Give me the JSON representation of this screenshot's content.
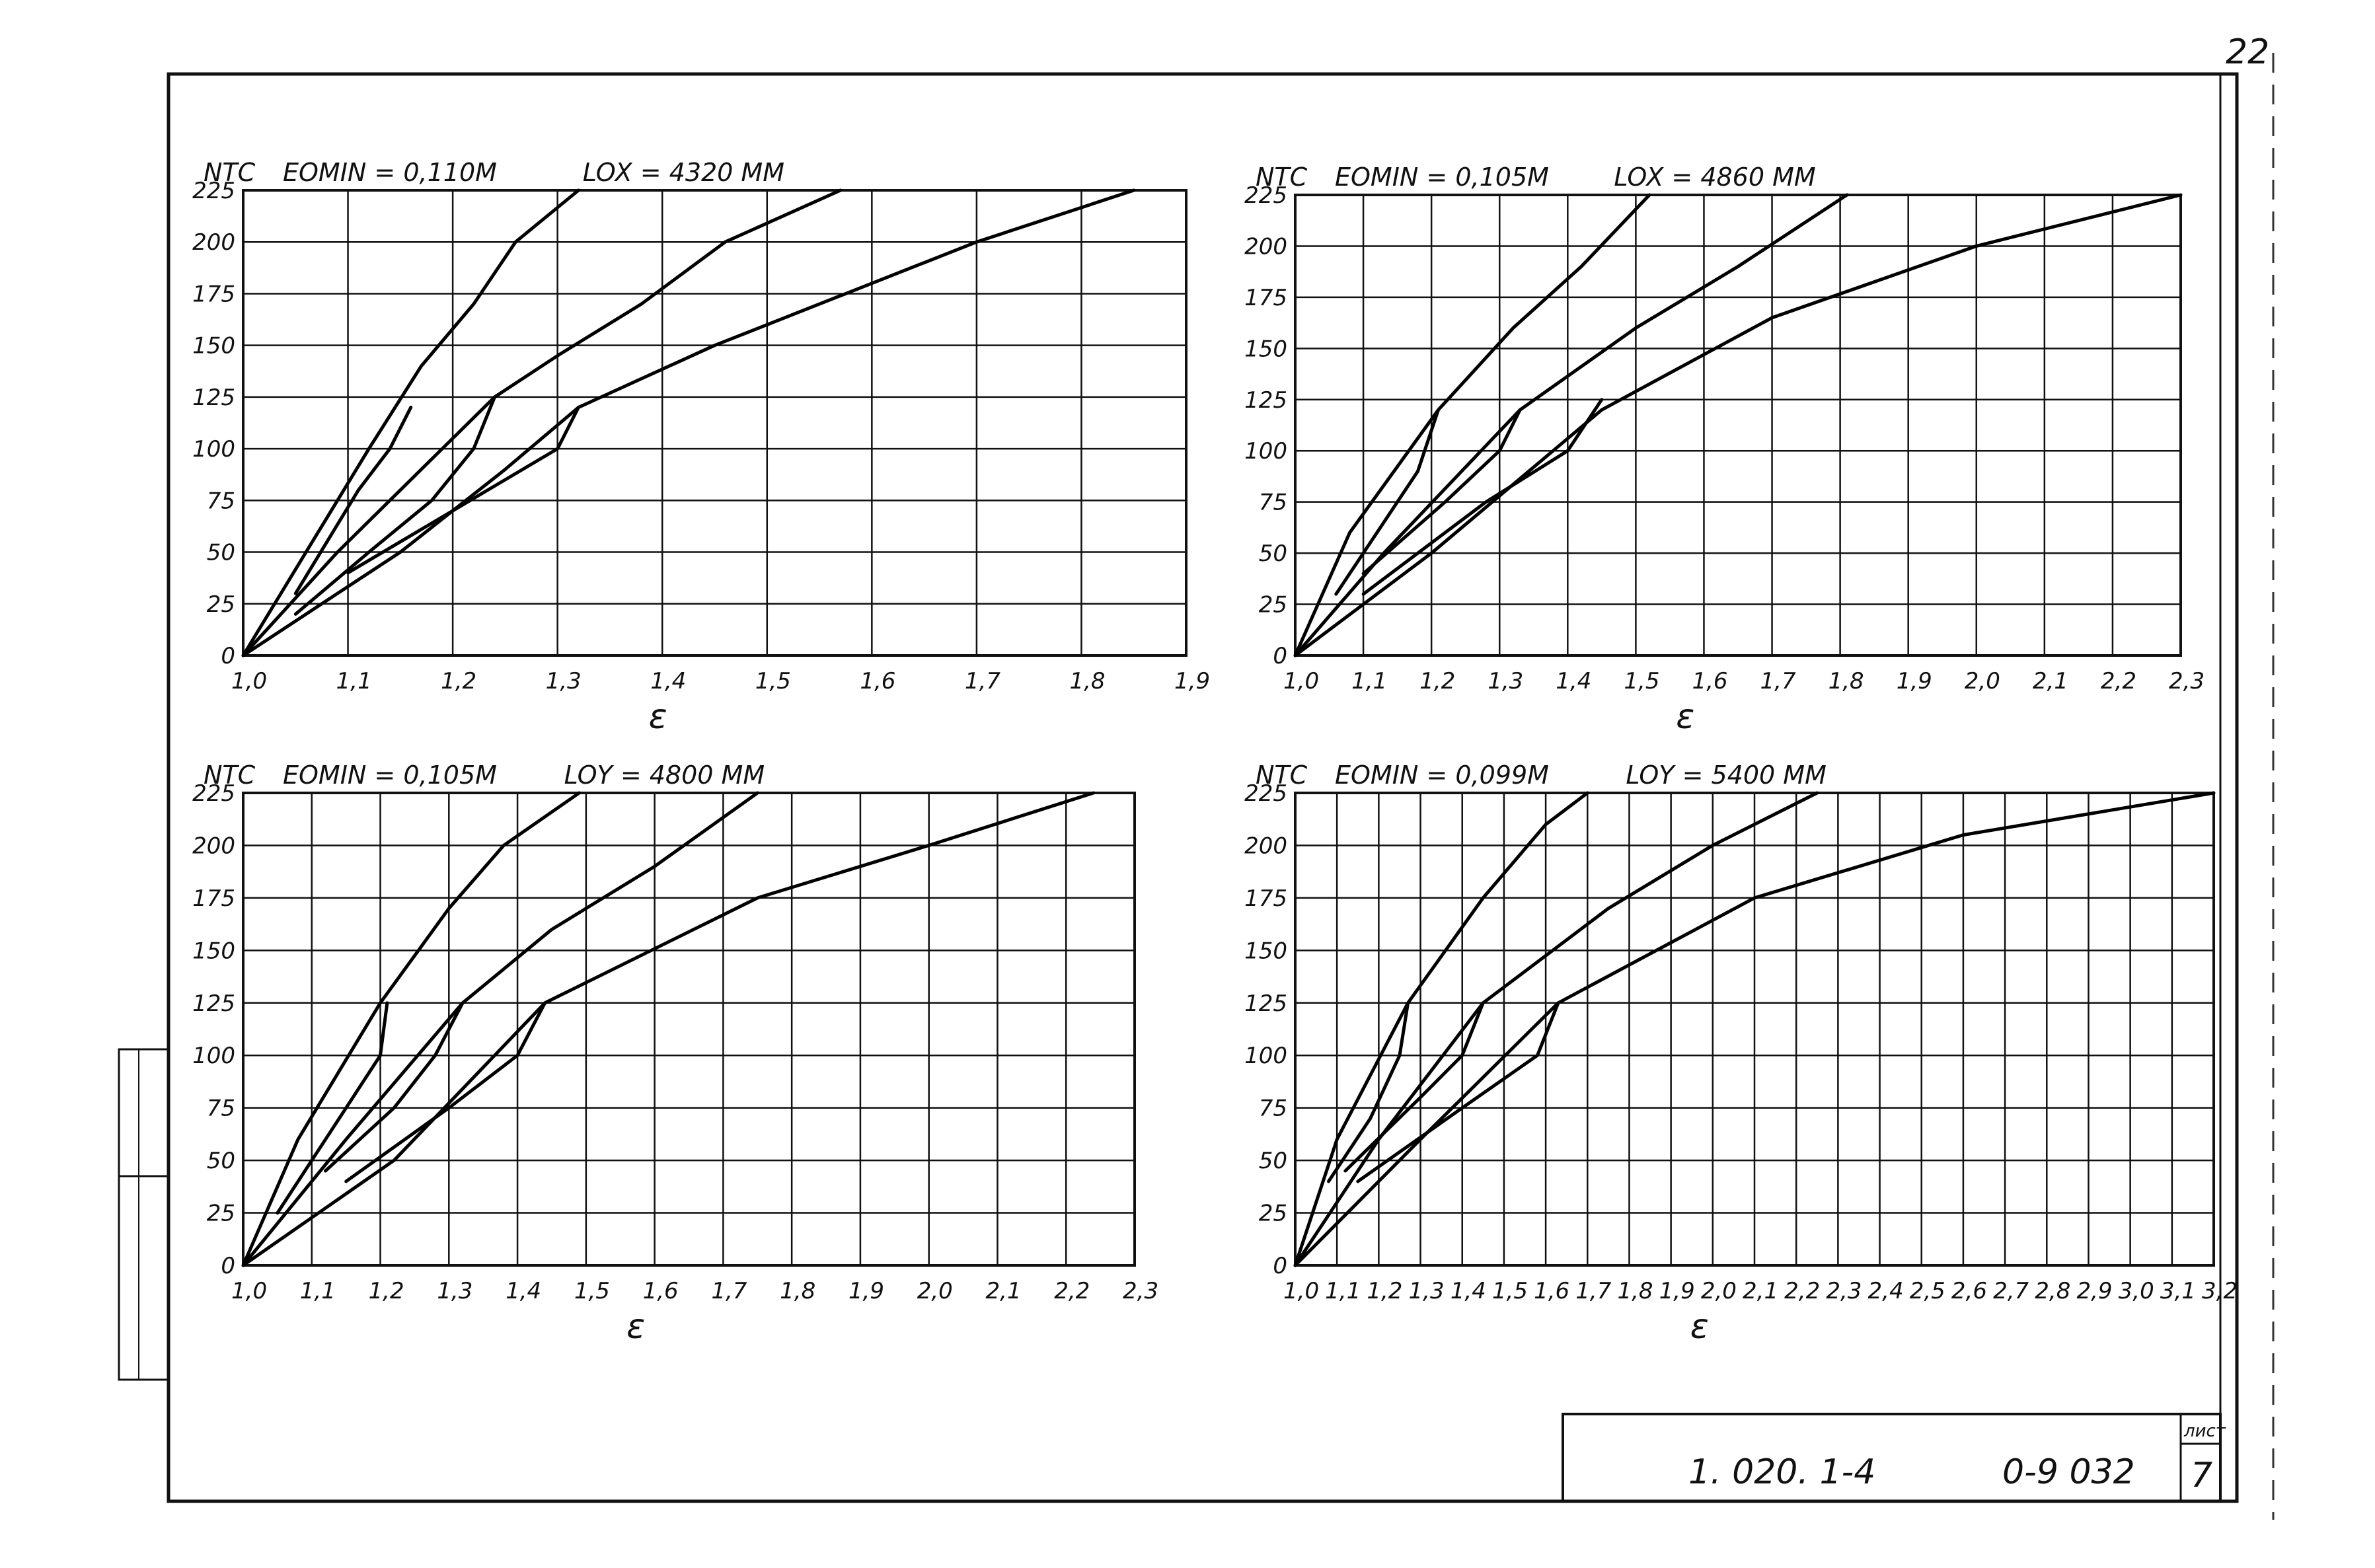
{
  "sheet": {
    "page_number": "22",
    "document_code": "1. 020. 1-4",
    "drawing_code": "0-9 032",
    "sheet_label": "лист",
    "sheet_number": "7"
  },
  "chart_data": [
    {
      "type": "line",
      "ylabel": "NTC",
      "xlabel": "ɛ",
      "param1": "EOMIN = 0,110M",
      "param2": "LOX = 4320 MM",
      "xlim": [
        1.0,
        1.9
      ],
      "ylim": [
        0,
        225
      ],
      "xticks": [
        "1,0",
        "1,1",
        "1,2",
        "1,3",
        "1,4",
        "1,5",
        "1,6",
        "1,7",
        "1,8",
        "1,9"
      ],
      "yticks": [
        "0",
        "25",
        "50",
        "75",
        "100",
        "125",
        "150",
        "175",
        "200",
        "225"
      ],
      "series": [
        {
          "points": [
            [
              1.0,
              0
            ],
            [
              1.06,
              50
            ],
            [
              1.12,
              100
            ],
            [
              1.17,
              140
            ],
            [
              1.22,
              170
            ],
            [
              1.26,
              200
            ],
            [
              1.32,
              225
            ]
          ]
        },
        {
          "points": [
            [
              1.0,
              0
            ],
            [
              1.09,
              50
            ],
            [
              1.17,
              90
            ],
            [
              1.24,
              125
            ],
            [
              1.3,
              145
            ],
            [
              1.38,
              170
            ],
            [
              1.46,
              200
            ],
            [
              1.57,
              225
            ]
          ]
        },
        {
          "points": [
            [
              1.0,
              0
            ],
            [
              1.15,
              50
            ],
            [
              1.25,
              90
            ],
            [
              1.32,
              120
            ],
            [
              1.45,
              150
            ],
            [
              1.6,
              180
            ],
            [
              1.7,
              200
            ],
            [
              1.85,
              225
            ]
          ]
        },
        {
          "points": [
            [
              1.16,
              120
            ],
            [
              1.14,
              100
            ],
            [
              1.11,
              80
            ],
            [
              1.08,
              55
            ],
            [
              1.05,
              30
            ]
          ]
        },
        {
          "points": [
            [
              1.24,
              125
            ],
            [
              1.22,
              100
            ],
            [
              1.18,
              75
            ],
            [
              1.12,
              50
            ],
            [
              1.05,
              20
            ]
          ]
        },
        {
          "points": [
            [
              1.32,
              120
            ],
            [
              1.3,
              100
            ],
            [
              1.2,
              70
            ],
            [
              1.1,
              40
            ]
          ]
        }
      ]
    },
    {
      "type": "line",
      "ylabel": "NTC",
      "xlabel": "ɛ",
      "param1": "EOMIN = 0,105M",
      "param2": "LOX = 4860 MM",
      "xlim": [
        1.0,
        2.3
      ],
      "ylim": [
        0,
        225
      ],
      "xticks": [
        "1,0",
        "1,1",
        "1,2",
        "1,3",
        "1,4",
        "1,5",
        "1,6",
        "1,7",
        "1,8",
        "1,9",
        "2,0",
        "2,1",
        "2,2",
        "2,3"
      ],
      "yticks": [
        "0",
        "25",
        "50",
        "75",
        "100",
        "125",
        "150",
        "175",
        "200",
        "225"
      ],
      "series": [
        {
          "points": [
            [
              1.0,
              0
            ],
            [
              1.08,
              60
            ],
            [
              1.21,
              120
            ],
            [
              1.32,
              160
            ],
            [
              1.42,
              190
            ],
            [
              1.52,
              225
            ]
          ]
        },
        {
          "points": [
            [
              1.0,
              0
            ],
            [
              1.13,
              50
            ],
            [
              1.33,
              120
            ],
            [
              1.5,
              160
            ],
            [
              1.65,
              190
            ],
            [
              1.81,
              225
            ]
          ]
        },
        {
          "points": [
            [
              1.0,
              0
            ],
            [
              1.2,
              50
            ],
            [
              1.45,
              120
            ],
            [
              1.7,
              165
            ],
            [
              2.0,
              200
            ],
            [
              2.3,
              225
            ]
          ]
        },
        {
          "points": [
            [
              1.21,
              120
            ],
            [
              1.18,
              90
            ],
            [
              1.12,
              60
            ],
            [
              1.06,
              30
            ]
          ]
        },
        {
          "points": [
            [
              1.33,
              120
            ],
            [
              1.3,
              100
            ],
            [
              1.22,
              75
            ],
            [
              1.1,
              40
            ]
          ]
        },
        {
          "points": [
            [
              1.45,
              125
            ],
            [
              1.4,
              100
            ],
            [
              1.28,
              75
            ],
            [
              1.1,
              30
            ]
          ]
        }
      ]
    },
    {
      "type": "line",
      "ylabel": "NTC",
      "xlabel": "ɛ",
      "param1": "EOMIN = 0,105M",
      "param2": "LOY = 4800 MM",
      "xlim": [
        1.0,
        2.3
      ],
      "ylim": [
        0,
        225
      ],
      "xticks": [
        "1,0",
        "1,1",
        "1,2",
        "1,3",
        "1,4",
        "1,5",
        "1,6",
        "1,7",
        "1,8",
        "1,9",
        "2,0",
        "2,1",
        "2,2",
        "2,3"
      ],
      "yticks": [
        "0",
        "25",
        "50",
        "75",
        "100",
        "125",
        "150",
        "175",
        "200",
        "225"
      ],
      "series": [
        {
          "points": [
            [
              1.0,
              0
            ],
            [
              1.08,
              60
            ],
            [
              1.2,
              125
            ],
            [
              1.3,
              170
            ],
            [
              1.38,
              200
            ],
            [
              1.49,
              225
            ]
          ]
        },
        {
          "points": [
            [
              1.0,
              0
            ],
            [
              1.15,
              60
            ],
            [
              1.32,
              125
            ],
            [
              1.45,
              160
            ],
            [
              1.6,
              190
            ],
            [
              1.75,
              225
            ]
          ]
        },
        {
          "points": [
            [
              1.0,
              0
            ],
            [
              1.22,
              50
            ],
            [
              1.44,
              125
            ],
            [
              1.75,
              175
            ],
            [
              2.0,
              200
            ],
            [
              2.24,
              225
            ]
          ]
        },
        {
          "points": [
            [
              1.21,
              125
            ],
            [
              1.2,
              100
            ],
            [
              1.15,
              75
            ],
            [
              1.1,
              50
            ],
            [
              1.05,
              25
            ]
          ]
        },
        {
          "points": [
            [
              1.32,
              125
            ],
            [
              1.28,
              100
            ],
            [
              1.22,
              75
            ],
            [
              1.12,
              45
            ]
          ]
        },
        {
          "points": [
            [
              1.44,
              125
            ],
            [
              1.4,
              100
            ],
            [
              1.3,
              75
            ],
            [
              1.15,
              40
            ]
          ]
        }
      ]
    },
    {
      "type": "line",
      "ylabel": "NTC",
      "xlabel": "ɛ",
      "param1": "EOMIN = 0,099M",
      "param2": "LOY = 5400 MM",
      "xlim": [
        1.0,
        3.2
      ],
      "ylim": [
        0,
        225
      ],
      "xticks": [
        "1,0",
        "1,1",
        "1,2",
        "1,3",
        "1,4",
        "1,5",
        "1,6",
        "1,7",
        "1,8",
        "1,9",
        "2,0",
        "2,1",
        "2,2",
        "2,3",
        "2,4",
        "2,5",
        "2,6",
        "2,7",
        "2,8",
        "2,9",
        "3,0",
        "3,1",
        "3,2"
      ],
      "yticks": [
        "0",
        "25",
        "50",
        "75",
        "100",
        "125",
        "150",
        "175",
        "200",
        "225"
      ],
      "series": [
        {
          "points": [
            [
              1.0,
              0
            ],
            [
              1.1,
              60
            ],
            [
              1.27,
              125
            ],
            [
              1.45,
              175
            ],
            [
              1.6,
              210
            ],
            [
              1.7,
              225
            ]
          ]
        },
        {
          "points": [
            [
              1.0,
              0
            ],
            [
              1.2,
              60
            ],
            [
              1.45,
              125
            ],
            [
              1.75,
              170
            ],
            [
              2.0,
              200
            ],
            [
              2.25,
              225
            ]
          ]
        },
        {
          "points": [
            [
              1.0,
              0
            ],
            [
              1.3,
              60
            ],
            [
              1.63,
              125
            ],
            [
              2.1,
              175
            ],
            [
              2.6,
              205
            ],
            [
              3.2,
              225
            ]
          ]
        },
        {
          "points": [
            [
              1.27,
              125
            ],
            [
              1.25,
              100
            ],
            [
              1.18,
              70
            ],
            [
              1.08,
              40
            ]
          ]
        },
        {
          "points": [
            [
              1.45,
              125
            ],
            [
              1.4,
              100
            ],
            [
              1.3,
              80
            ],
            [
              1.12,
              45
            ]
          ]
        },
        {
          "points": [
            [
              1.63,
              125
            ],
            [
              1.58,
              100
            ],
            [
              1.4,
              75
            ],
            [
              1.15,
              40
            ]
          ]
        }
      ]
    }
  ]
}
